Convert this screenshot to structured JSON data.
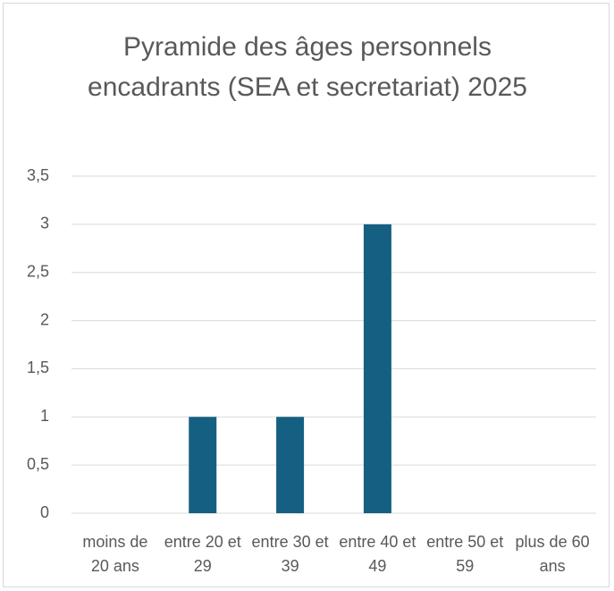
{
  "chart_data": {
    "type": "bar",
    "title": "Pyramide des âges personnels encadrants (SEA et secretariat) 2025",
    "categories": [
      "moins de 20 ans",
      "entre 20 et 29",
      "entre 30 et 39",
      "entre 40 et 49",
      "entre 50 et 59",
      "plus de 60 ans"
    ],
    "values": [
      0,
      1,
      1,
      3,
      0,
      0
    ],
    "color": "#156082",
    "ylim": [
      0,
      3.5
    ],
    "yticks": [
      0,
      {
        "value": 0.5,
        "label": "0,5"
      },
      1,
      {
        "value": 1.5,
        "label": "1,5"
      },
      2,
      {
        "value": 2.5,
        "label": "2,5"
      },
      3,
      {
        "value": 3.5,
        "label": "3,5"
      }
    ],
    "grid": true
  }
}
